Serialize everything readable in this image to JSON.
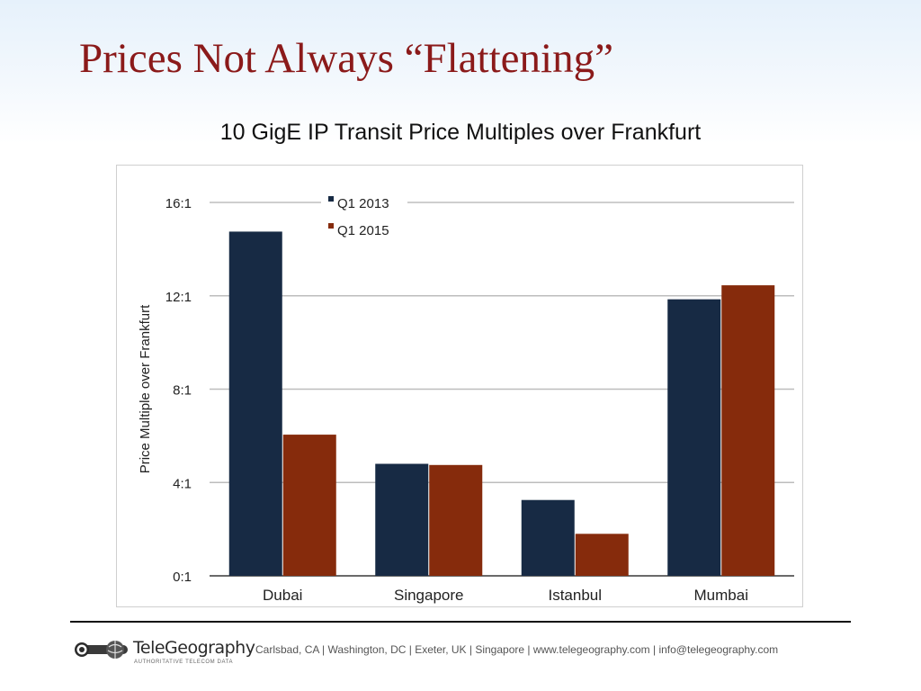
{
  "slide": {
    "title": "Prices Not Always “Flattening”"
  },
  "chart_data": {
    "type": "bar",
    "title": "10 GigE IP Transit Price Multiples over Frankfurt",
    "xlabel": "",
    "ylabel": "Price Multiple over Frankfurt",
    "categories": [
      "Dubai",
      "Singapore",
      "Istanbul",
      "Mumbai"
    ],
    "series": [
      {
        "name": "Q1 2013",
        "color": "#172a44",
        "values": [
          14.75,
          4.8,
          3.25,
          11.85
        ]
      },
      {
        "name": "Q1 2015",
        "color": "#862b0c",
        "values": [
          6.05,
          4.75,
          1.8,
          12.45
        ]
      }
    ],
    "ylim": [
      0,
      16
    ],
    "yticks": [
      0,
      4,
      8,
      12,
      16
    ],
    "ytick_labels": [
      "0:1",
      "4:1",
      "8:1",
      "12:1",
      "16:1"
    ],
    "grid": true,
    "legend_position": "top-left"
  },
  "footer": {
    "logo_name": "TeleGeography",
    "logo_tagline": "AUTHORITATIVE TELECOM DATA",
    "contact": "Carlsbad, CA | Washington, DC | Exeter, UK | Singapore | www.telegeography.com | info@telegeography.com"
  }
}
